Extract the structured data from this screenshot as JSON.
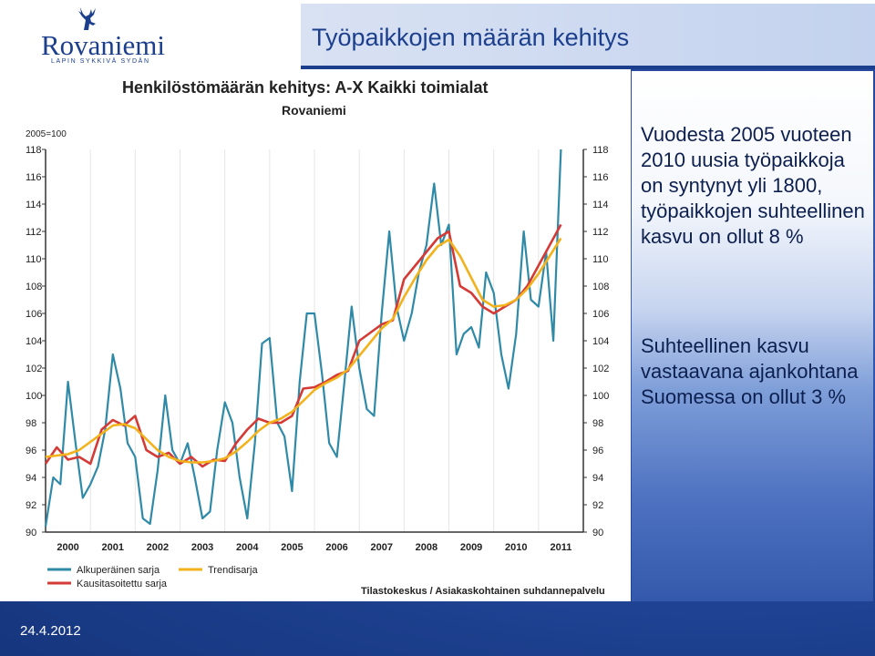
{
  "logo": {
    "name": "Rovaniemi",
    "tagline": "LAPIN SYKKIVÄ SYDÄN"
  },
  "slide_title": "Työpaikkojen määrän kehitys",
  "side_text": {
    "para1": "Vuodesta 2005 vuoteen 2010 uusia työpaikkoja on syntynyt yli 1800, työpaikkojen suhteellinen kasvu on ollut 8 %",
    "para2": "Suhteellinen kasvu vastaavana ajankohtana Suomessa on ollut 3 %"
  },
  "footer_date": "24.4.2012",
  "colors": {
    "original": "#2f8aa8",
    "adjusted": "#d43a36",
    "trend": "#f2b21c"
  },
  "chart_data": {
    "type": "line",
    "title": "Henkilöstömäärän kehitys: A-X Kaikki toimialat",
    "subtitle": "Rovaniemi",
    "index_label": "2005=100",
    "source": "Tilastokeskus / Asiakaskohtainen suhdannepalvelu",
    "ylim": [
      90,
      118
    ],
    "yticks": [
      90,
      92,
      94,
      96,
      98,
      100,
      102,
      104,
      106,
      108,
      110,
      112,
      114,
      116,
      118
    ],
    "xlim": [
      1999.5,
      2011.5
    ],
    "xticks": [
      "2000",
      "2001",
      "2002",
      "2003",
      "2004",
      "2005",
      "2006",
      "2007",
      "2008",
      "2009",
      "2010",
      "2011"
    ],
    "legend_position": "bottom-left",
    "grid": "vertical",
    "series": [
      {
        "name": "Alkuperäinen sarja",
        "color": "#2f8aa8",
        "x": [
          1999.5,
          1999.67,
          1999.83,
          2000.0,
          2000.17,
          2000.33,
          2000.5,
          2000.67,
          2000.83,
          2001.0,
          2001.17,
          2001.33,
          2001.5,
          2001.67,
          2001.83,
          2002.0,
          2002.17,
          2002.33,
          2002.5,
          2002.67,
          2002.83,
          2003.0,
          2003.17,
          2003.33,
          2003.5,
          2003.67,
          2003.83,
          2004.0,
          2004.17,
          2004.33,
          2004.5,
          2004.67,
          2004.83,
          2005.0,
          2005.17,
          2005.33,
          2005.5,
          2005.67,
          2005.83,
          2006.0,
          2006.17,
          2006.33,
          2006.5,
          2006.67,
          2006.83,
          2007.0,
          2007.17,
          2007.33,
          2007.5,
          2007.67,
          2007.83,
          2008.0,
          2008.17,
          2008.33,
          2008.5,
          2008.67,
          2008.83,
          2009.0,
          2009.17,
          2009.33,
          2009.5,
          2009.67,
          2009.83,
          2010.0,
          2010.17,
          2010.33,
          2010.5,
          2010.67,
          2010.83,
          2011.0
        ],
        "values": [
          90.4,
          94.0,
          93.5,
          101.0,
          96.5,
          92.5,
          93.5,
          94.8,
          97.5,
          103.0,
          100.5,
          96.5,
          95.5,
          91.0,
          90.6,
          94.5,
          100.0,
          96.0,
          95.0,
          96.5,
          94.0,
          91.0,
          91.5,
          96.0,
          99.5,
          98.0,
          94.0,
          91.0,
          96.5,
          103.8,
          104.2,
          98.0,
          97.0,
          93.0,
          101.0,
          106.0,
          106.0,
          101.5,
          96.5,
          95.5,
          101.0,
          106.5,
          102.0,
          99.0,
          98.5,
          106.0,
          112.0,
          106.5,
          104.0,
          106.0,
          109.0,
          111.0,
          115.5,
          111.0,
          112.5,
          103.0,
          104.5,
          105.0,
          103.5,
          109.0,
          107.5,
          103.0,
          100.5,
          104.5,
          112.0,
          107.0,
          106.5,
          110.5,
          104.0,
          118.0
        ]
      },
      {
        "name": "Kausitasoitettu sarja",
        "color": "#d43a36",
        "x": [
          1999.5,
          1999.75,
          2000.0,
          2000.25,
          2000.5,
          2000.75,
          2001.0,
          2001.25,
          2001.5,
          2001.75,
          2002.0,
          2002.25,
          2002.5,
          2002.75,
          2003.0,
          2003.25,
          2003.5,
          2003.75,
          2004.0,
          2004.25,
          2004.5,
          2004.75,
          2005.0,
          2005.25,
          2005.5,
          2005.75,
          2006.0,
          2006.25,
          2006.5,
          2006.75,
          2007.0,
          2007.25,
          2007.5,
          2007.75,
          2008.0,
          2008.25,
          2008.5,
          2008.75,
          2009.0,
          2009.25,
          2009.5,
          2009.75,
          2010.0,
          2010.25,
          2010.5,
          2010.75,
          2011.0
        ],
        "values": [
          95.0,
          96.2,
          95.3,
          95.5,
          95.0,
          97.5,
          98.2,
          97.8,
          98.5,
          96.0,
          95.5,
          95.8,
          95.0,
          95.5,
          94.8,
          95.3,
          95.2,
          96.5,
          97.5,
          98.3,
          98.0,
          98.0,
          98.5,
          100.5,
          100.6,
          101.0,
          101.5,
          101.8,
          104.0,
          104.6,
          105.2,
          105.5,
          108.5,
          109.5,
          110.5,
          111.5,
          112.0,
          108.0,
          107.5,
          106.5,
          106.0,
          106.5,
          107.0,
          108.0,
          109.5,
          111.0,
          112.5
        ]
      },
      {
        "name": "Trendisarja",
        "color": "#f2b21c",
        "x": [
          1999.5,
          1999.75,
          2000.0,
          2000.25,
          2000.5,
          2000.75,
          2001.0,
          2001.25,
          2001.5,
          2001.75,
          2002.0,
          2002.25,
          2002.5,
          2002.75,
          2003.0,
          2003.25,
          2003.5,
          2003.75,
          2004.0,
          2004.25,
          2004.5,
          2004.75,
          2005.0,
          2005.25,
          2005.5,
          2005.75,
          2006.0,
          2006.25,
          2006.5,
          2006.75,
          2007.0,
          2007.25,
          2007.5,
          2007.75,
          2008.0,
          2008.25,
          2008.5,
          2008.75,
          2009.0,
          2009.25,
          2009.5,
          2009.75,
          2010.0,
          2010.25,
          2010.5,
          2010.75,
          2011.0
        ],
        "values": [
          95.5,
          95.6,
          95.7,
          96.0,
          96.6,
          97.2,
          97.8,
          97.9,
          97.6,
          96.8,
          96.0,
          95.5,
          95.2,
          95.1,
          95.1,
          95.2,
          95.4,
          95.9,
          96.6,
          97.4,
          98.0,
          98.3,
          98.8,
          99.6,
          100.4,
          100.9,
          101.3,
          101.9,
          102.9,
          103.9,
          104.9,
          105.6,
          107.2,
          108.6,
          109.9,
          110.9,
          111.4,
          110.2,
          108.6,
          107.0,
          106.5,
          106.6,
          107.0,
          107.8,
          108.9,
          110.2,
          111.5
        ]
      }
    ]
  }
}
